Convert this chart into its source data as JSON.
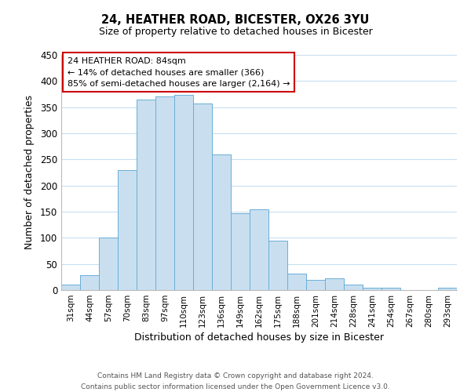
{
  "title": "24, HEATHER ROAD, BICESTER, OX26 3YU",
  "subtitle": "Size of property relative to detached houses in Bicester",
  "xlabel": "Distribution of detached houses by size in Bicester",
  "ylabel": "Number of detached properties",
  "categories": [
    "31sqm",
    "44sqm",
    "57sqm",
    "70sqm",
    "83sqm",
    "97sqm",
    "110sqm",
    "123sqm",
    "136sqm",
    "149sqm",
    "162sqm",
    "175sqm",
    "188sqm",
    "201sqm",
    "214sqm",
    "228sqm",
    "241sqm",
    "254sqm",
    "267sqm",
    "280sqm",
    "293sqm"
  ],
  "values": [
    10,
    28,
    100,
    230,
    365,
    370,
    373,
    357,
    260,
    147,
    154,
    95,
    32,
    20,
    22,
    11,
    4,
    5,
    0,
    0,
    4
  ],
  "bar_color": "#c9dff0",
  "bar_edge_color": "#6aaed6",
  "annotation_box_color": "#ffffff",
  "annotation_box_edge_color": "#cc0000",
  "annotation_title": "24 HEATHER ROAD: 84sqm",
  "annotation_line1": "← 14% of detached houses are smaller (366)",
  "annotation_line2": "85% of semi-detached houses are larger (2,164) →",
  "ylim": [
    0,
    450
  ],
  "yticks": [
    0,
    50,
    100,
    150,
    200,
    250,
    300,
    350,
    400,
    450
  ],
  "footer_line1": "Contains HM Land Registry data © Crown copyright and database right 2024.",
  "footer_line2": "Contains public sector information licensed under the Open Government Licence v3.0.",
  "background_color": "#ffffff",
  "grid_color": "#c8dff0"
}
